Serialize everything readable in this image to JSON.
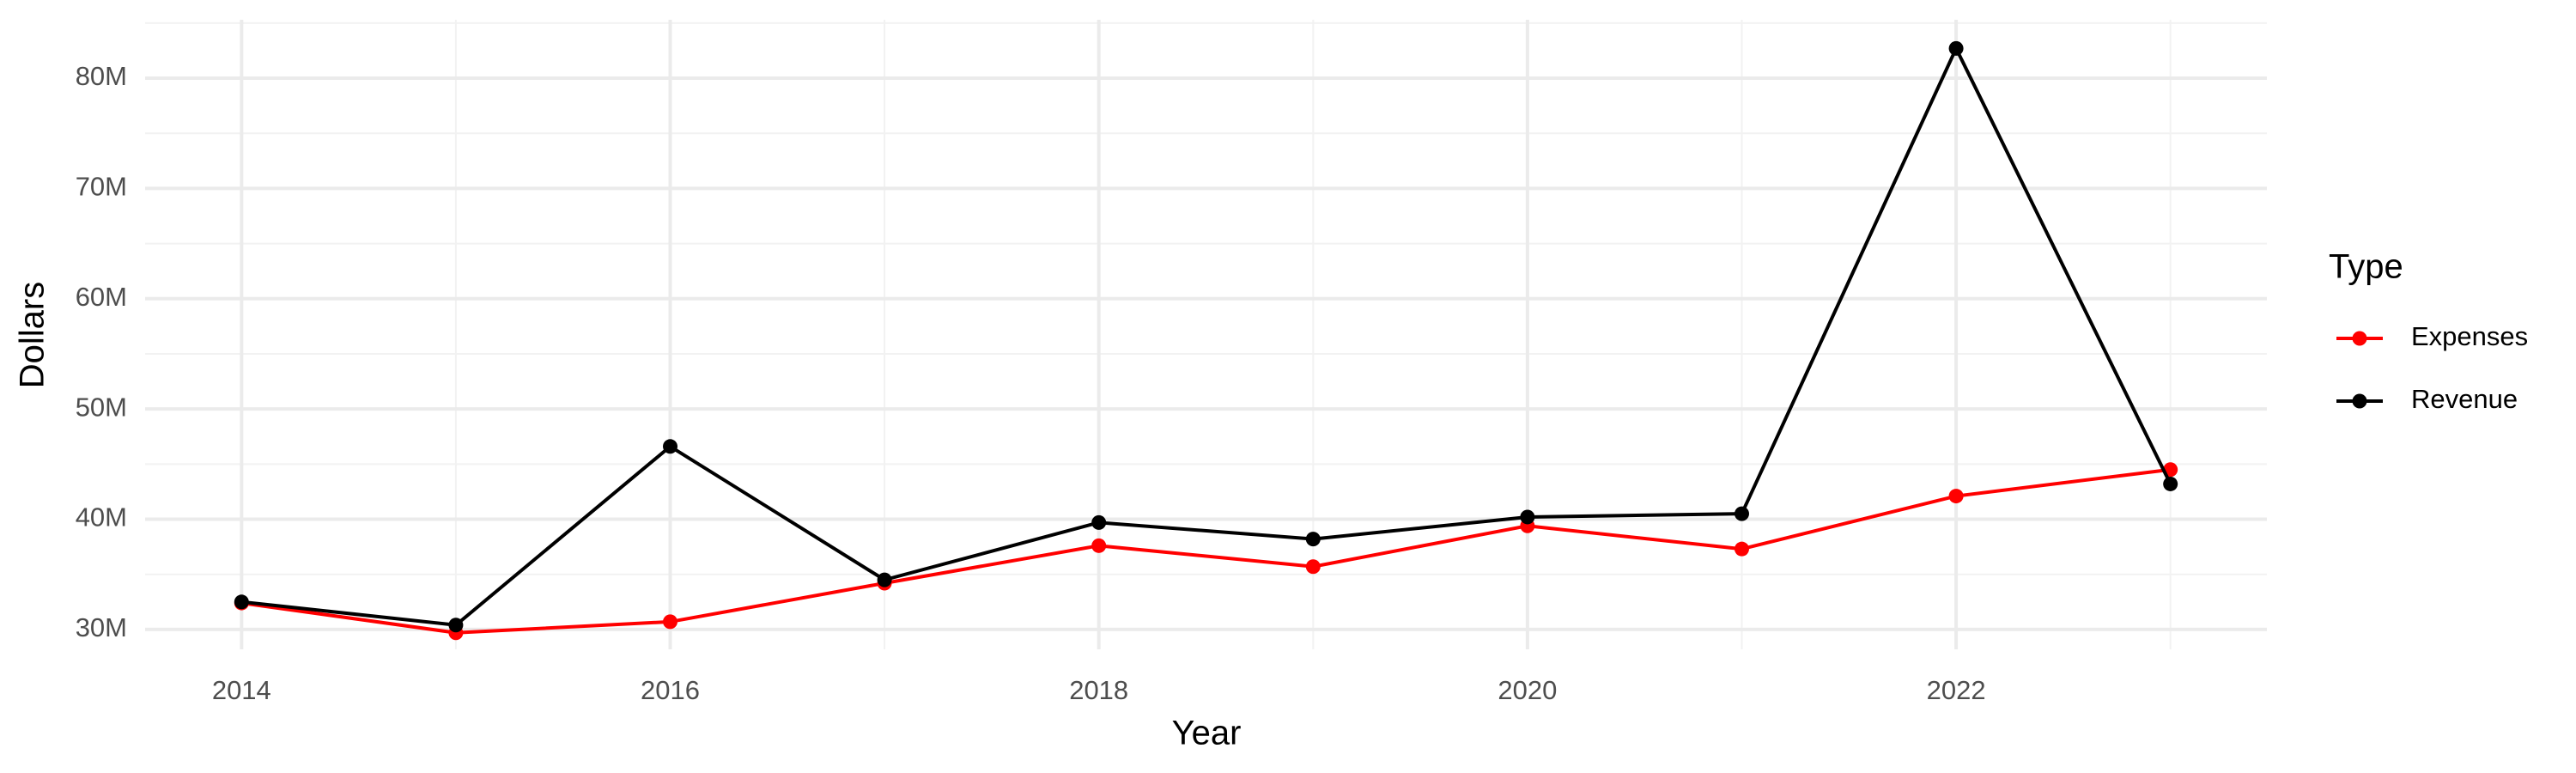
{
  "chart_data": {
    "type": "line",
    "x_label": "Year",
    "y_label": "Dollars",
    "x": [
      2014,
      2015,
      2016,
      2017,
      2018,
      2019,
      2020,
      2021,
      2022,
      2023
    ],
    "series": [
      {
        "name": "Expenses",
        "color": "#ff0000",
        "values": [
          32400000,
          29700000,
          30700000,
          34200000,
          37600000,
          35700000,
          39400000,
          37300000,
          42100000,
          44500000
        ]
      },
      {
        "name": "Revenue",
        "color": "#000000",
        "values": [
          32500000,
          30400000,
          46600000,
          34500000,
          39700000,
          38200000,
          40200000,
          40500000,
          82700000,
          43200000
        ]
      }
    ],
    "legend_title": "Type",
    "legend": "right",
    "grid": true,
    "xlim": [
      2013.55,
      2023.45
    ],
    "xticks": [
      2014,
      2016,
      2018,
      2020,
      2022
    ],
    "ylim": [
      28200000,
      85300000
    ],
    "yticks": [
      {
        "value": 30000000,
        "label": "30M"
      },
      {
        "value": 40000000,
        "label": "40M"
      },
      {
        "value": 50000000,
        "label": "50M"
      },
      {
        "value": 60000000,
        "label": "60M"
      },
      {
        "value": 70000000,
        "label": "70M"
      },
      {
        "value": 80000000,
        "label": "80M"
      }
    ]
  }
}
